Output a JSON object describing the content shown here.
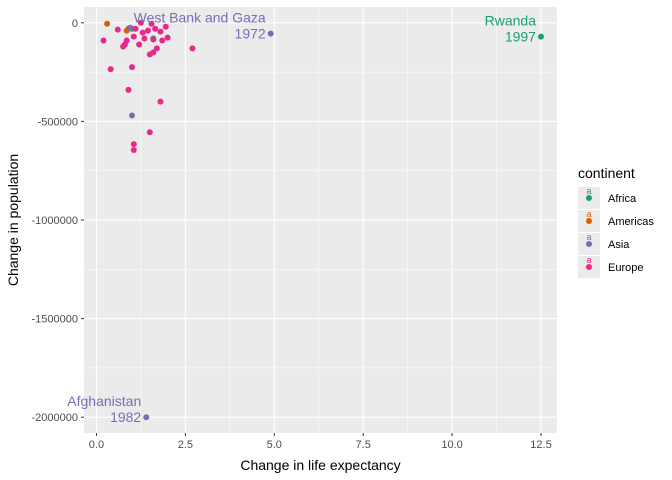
{
  "chart_data": {
    "type": "scatter",
    "title": "",
    "xlabel": "Change in life expectancy",
    "ylabel": "Change in population",
    "xlim": [
      -0.35,
      12.95
    ],
    "ylim": [
      -2080000,
      80000
    ],
    "x_ticks": [
      0,
      2.5,
      5,
      7.5,
      10,
      12.5
    ],
    "x_tick_labels": [
      "0.0",
      "2.5",
      "5.0",
      "7.5",
      "10.0",
      "12.5"
    ],
    "y_ticks": [
      0,
      -500000,
      -1000000,
      -1500000,
      -2000000
    ],
    "y_tick_labels": [
      "0",
      "-500000",
      "-1000000",
      "-1500000",
      "-2000000"
    ],
    "grid": true,
    "legend": {
      "title": "continent",
      "position": "right",
      "entries": [
        {
          "label": "Africa",
          "color": "#1b9e77"
        },
        {
          "label": "Americas",
          "color": "#d95f02"
        },
        {
          "label": "Asia",
          "color": "#7570b3"
        },
        {
          "label": "Europe",
          "color": "#e7298a"
        }
      ]
    },
    "series": [
      {
        "name": "Africa",
        "color": "#1b9e77",
        "points": [
          [
            12.5,
            -70000
          ],
          [
            0.9,
            -30000
          ],
          [
            1.6,
            -80000
          ],
          [
            1.0,
            -30000
          ]
        ]
      },
      {
        "name": "Americas",
        "color": "#d95f02",
        "points": [
          [
            0.3,
            -5000
          ],
          [
            0.85,
            -40000
          ]
        ]
      },
      {
        "name": "Asia",
        "color": "#7570b3",
        "points": [
          [
            4.9,
            -55000
          ],
          [
            1.4,
            -2000000
          ],
          [
            1.0,
            -470000
          ],
          [
            0.95,
            -25000
          ]
        ]
      },
      {
        "name": "Europe",
        "color": "#e7298a",
        "points": [
          [
            0.2,
            -90000
          ],
          [
            0.4,
            -235000
          ],
          [
            0.6,
            -35000
          ],
          [
            0.75,
            -120000
          ],
          [
            0.85,
            -90000
          ],
          [
            0.9,
            -340000
          ],
          [
            1.0,
            -225000
          ],
          [
            1.05,
            -70000
          ],
          [
            1.1,
            -30000
          ],
          [
            1.2,
            -110000
          ],
          [
            1.25,
            0
          ],
          [
            1.3,
            -50000
          ],
          [
            1.35,
            -80000
          ],
          [
            1.45,
            -40000
          ],
          [
            1.5,
            -160000
          ],
          [
            1.5,
            -555000
          ],
          [
            1.55,
            -5000
          ],
          [
            1.6,
            -150000
          ],
          [
            1.65,
            -30000
          ],
          [
            1.7,
            -130000
          ],
          [
            1.8,
            -45000
          ],
          [
            1.85,
            -90000
          ],
          [
            1.95,
            -20000
          ],
          [
            2.0,
            -75000
          ],
          [
            2.7,
            -130000
          ],
          [
            1.8,
            -400000
          ],
          [
            1.05,
            -615000
          ],
          [
            1.05,
            -645000
          ],
          [
            1.6,
            -85000
          ],
          [
            0.8,
            -110000
          ]
        ]
      }
    ],
    "annotations": [
      {
        "line1": "West Bank and Gaza",
        "line2": "1972",
        "x": 4.9,
        "y": -55000,
        "color": "#7570b3"
      },
      {
        "line1": "Rwanda",
        "line2": "1997",
        "x": 12.5,
        "y": -70000,
        "color": "#1b9e77"
      },
      {
        "line1": "Afghanistan",
        "line2": "1982",
        "x": 1.4,
        "y": -2000000,
        "color": "#7570b3"
      }
    ]
  }
}
